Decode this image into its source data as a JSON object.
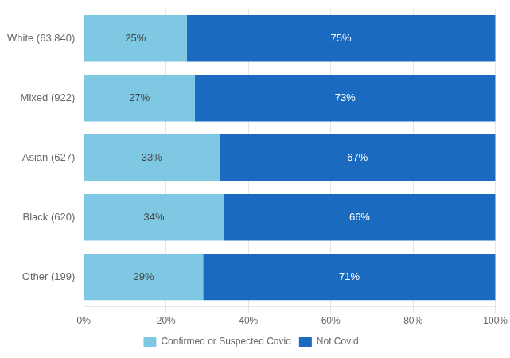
{
  "chart_data": {
    "type": "bar",
    "orientation": "horizontal",
    "stacked": true,
    "categories": [
      "White (63,840)",
      "Mixed (922)",
      "Asian (627)",
      "Black (620)",
      "Other (199)"
    ],
    "series": [
      {
        "name": "Confirmed or Suspected Covid",
        "color": "#7ec8e3",
        "values": [
          25,
          27,
          33,
          34,
          29
        ],
        "value_labels": [
          "25%",
          "27%",
          "33%",
          "34%",
          "29%"
        ]
      },
      {
        "name": "Not Covid",
        "color": "#1a6abf",
        "values": [
          75,
          73,
          67,
          66,
          71
        ],
        "value_labels": [
          "75%",
          "73%",
          "67%",
          "66%",
          "71%"
        ]
      }
    ],
    "xlim": [
      0,
      100
    ],
    "xticks": [
      {
        "value": 0,
        "label": "0%"
      },
      {
        "value": 20,
        "label": "20%"
      },
      {
        "value": 40,
        "label": "40%"
      },
      {
        "value": 60,
        "label": "60%"
      },
      {
        "value": 80,
        "label": "80%"
      },
      {
        "value": 100,
        "label": "100%"
      }
    ],
    "grid": true,
    "legend": "bottom",
    "data_labels": true
  }
}
